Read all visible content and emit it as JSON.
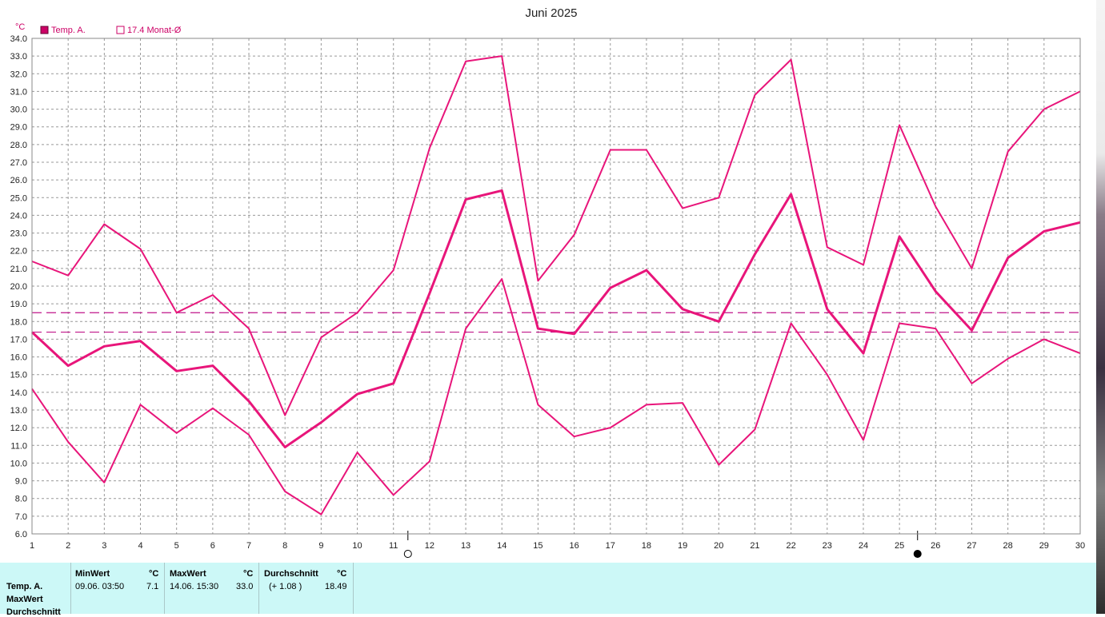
{
  "chart_data": {
    "type": "line",
    "title": "Juni 2025",
    "unit_label": "°C",
    "legend": [
      {
        "label": "Temp. A.",
        "filled": true
      },
      {
        "label": "17.4 Monat-Ø",
        "filled": false
      }
    ],
    "x": [
      1,
      2,
      3,
      4,
      5,
      6,
      7,
      8,
      9,
      10,
      11,
      12,
      13,
      14,
      15,
      16,
      17,
      18,
      19,
      20,
      21,
      22,
      23,
      24,
      25,
      26,
      27,
      28,
      29,
      30
    ],
    "ylim": [
      6.0,
      34.0
    ],
    "yticks": [
      "6.0",
      "7.0",
      "8.0",
      "9.0",
      "10.0",
      "11.0",
      "12.0",
      "13.0",
      "14.0",
      "15.0",
      "16.0",
      "17.0",
      "18.0",
      "19.0",
      "20.0",
      "21.0",
      "22.0",
      "23.0",
      "24.0",
      "25.0",
      "26.0",
      "27.0",
      "28.0",
      "29.0",
      "30.0",
      "31.0",
      "32.0",
      "33.0",
      "34.0"
    ],
    "series": [
      {
        "role": "max",
        "values": [
          21.4,
          20.6,
          23.5,
          22.1,
          18.5,
          19.5,
          17.6,
          12.7,
          17.1,
          18.5,
          20.9,
          27.8,
          32.7,
          33.0,
          20.3,
          22.9,
          27.7,
          27.7,
          24.4,
          25.0,
          30.8,
          32.8,
          22.2,
          21.2,
          29.1,
          24.5,
          21.0,
          27.6,
          30.0,
          31.0
        ]
      },
      {
        "role": "avg",
        "values": [
          17.4,
          15.5,
          16.6,
          16.9,
          15.2,
          15.5,
          13.5,
          10.9,
          12.3,
          13.9,
          14.5,
          19.6,
          24.9,
          25.4,
          17.6,
          17.3,
          19.9,
          20.9,
          18.7,
          18.0,
          21.8,
          25.2,
          18.7,
          16.2,
          22.8,
          19.7,
          17.5,
          21.6,
          23.1,
          23.6
        ]
      },
      {
        "role": "min",
        "values": [
          14.2,
          11.2,
          8.9,
          13.3,
          11.7,
          13.1,
          11.6,
          8.4,
          7.1,
          10.6,
          8.2,
          10.1,
          17.6,
          20.4,
          13.3,
          11.5,
          12.0,
          13.3,
          13.4,
          9.9,
          11.9,
          17.9,
          15.0,
          11.3,
          17.9,
          17.6,
          14.5,
          15.9,
          17.0,
          16.2
        ]
      }
    ],
    "reference_lines": [
      17.4,
      18.5
    ],
    "moon_markers": [
      {
        "x": 11.4,
        "phase": "full"
      },
      {
        "x": 25.5,
        "phase": "new"
      }
    ],
    "line_color": "#e8157a",
    "grid": true
  },
  "stats": {
    "rows": [
      "Temp. A.",
      "MaxWert",
      "Durchschnitt"
    ],
    "min": {
      "header": "MinWert",
      "unit": "°C",
      "datetime": "09.06.  03:50",
      "value": "7.1"
    },
    "max": {
      "header": "MaxWert",
      "unit": "°C",
      "datetime": "14.06.  15:30",
      "value": "33.0"
    },
    "avg": {
      "header": "Durchschnitt",
      "unit": "°C",
      "delta": "(+ 1.08 )",
      "value": "18.49"
    }
  },
  "colors": {
    "line": "#e8157a",
    "dash": "#c0168a",
    "stats_bg": "#ccf8f7",
    "label": "#cc0066"
  }
}
